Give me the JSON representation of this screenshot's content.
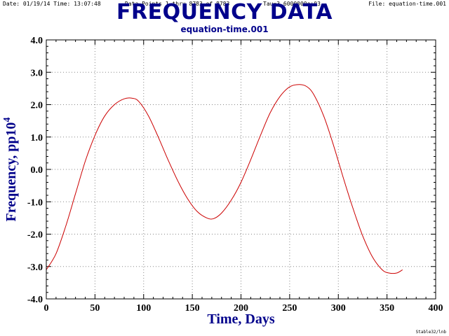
{
  "header": {
    "date_time": "Date: 01/19/14   Time: 13:07:48",
    "points": "Data Points 1 thru 8783 of 8783",
    "tau": "Tau=3.6000000e+03",
    "file": "File: equation-time.001"
  },
  "footer": "Stable32/lnb",
  "colors": {
    "title": "#00008b",
    "line": "#cc0000",
    "grid": "#888888",
    "axis": "#000000"
  },
  "chart_data": {
    "type": "line",
    "title": "FREQUENCY DATA",
    "subtitle": "equation-time.001",
    "xlabel": "Time, Days",
    "ylabel_base": "Frequency, pp10",
    "ylabel_sup": "4",
    "xlim": [
      0,
      400
    ],
    "ylim": [
      -4,
      4
    ],
    "xticks": [
      0,
      50,
      100,
      150,
      200,
      250,
      300,
      350,
      400
    ],
    "xtick_labels": [
      "0",
      "50",
      "100",
      "150",
      "200",
      "250",
      "300",
      "350",
      "400"
    ],
    "yticks": [
      4,
      3,
      2,
      1,
      0,
      -1,
      -2,
      -3,
      -4
    ],
    "ytick_labels": [
      "4.0",
      "3.0",
      "2.0",
      "1.0",
      "0.0",
      "-1.0",
      "-2.0",
      "-3.0",
      "-4.0"
    ],
    "grid": true,
    "series": [
      {
        "x": [
          0,
          10,
          20,
          30,
          40,
          50,
          60,
          70,
          80,
          88,
          95,
          105,
          115,
          125,
          135,
          145,
          155,
          165,
          172,
          180,
          190,
          200,
          210,
          220,
          230,
          240,
          250,
          260,
          268,
          275,
          285,
          295,
          305,
          315,
          325,
          335,
          345,
          352,
          360,
          366
        ],
        "y": [
          -3.1,
          -2.6,
          -1.75,
          -0.75,
          0.25,
          1.05,
          1.65,
          2.0,
          2.18,
          2.2,
          2.1,
          1.65,
          1.0,
          0.3,
          -0.35,
          -0.9,
          -1.3,
          -1.5,
          -1.52,
          -1.35,
          -0.95,
          -0.4,
          0.3,
          1.05,
          1.75,
          2.25,
          2.55,
          2.62,
          2.55,
          2.3,
          1.65,
          0.75,
          -0.25,
          -1.2,
          -2.05,
          -2.7,
          -3.1,
          -3.2,
          -3.2,
          -3.1
        ]
      }
    ]
  }
}
